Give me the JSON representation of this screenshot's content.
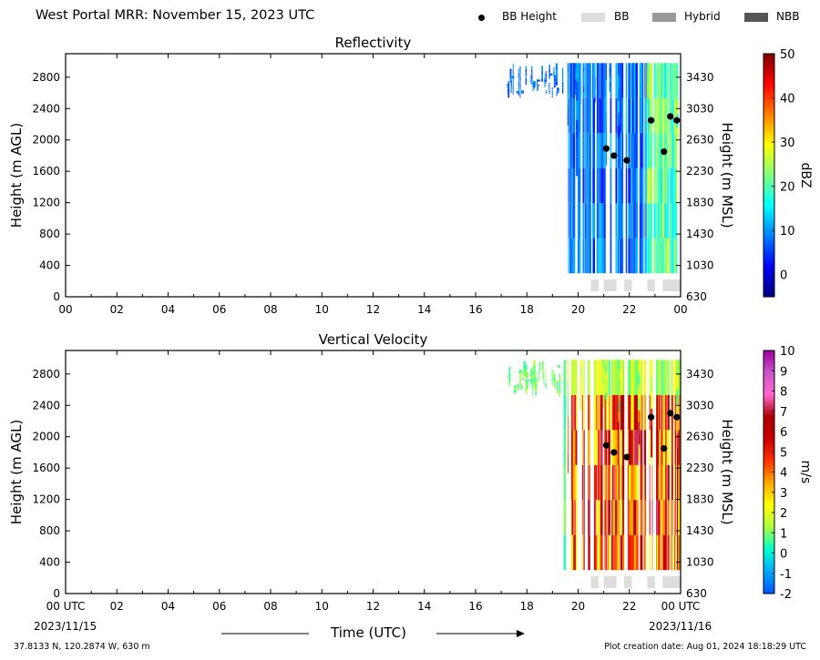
{
  "header": {
    "title": "West Portal MRR:  November 15, 2023 UTC"
  },
  "legend": {
    "placement": "top-right",
    "items": [
      {
        "label": "BB Height",
        "marker": "dot",
        "color": "#000000"
      },
      {
        "label": "BB",
        "marker": "box",
        "color": "#dddddd"
      },
      {
        "label": "Hybrid",
        "marker": "box",
        "color": "#999999"
      },
      {
        "label": "NBB",
        "marker": "box",
        "color": "#555555"
      }
    ]
  },
  "footer": {
    "location": "37.8133 N, 120.2874 W, 630 m",
    "creation": "Plot creation date: Aug 01, 2024 18:18:29 UTC",
    "xlabel": "Time (UTC)",
    "start_date": "2023/11/15",
    "end_date": "2023/11/16"
  },
  "chart_data": [
    {
      "type": "heatmap",
      "title": "Reflectivity",
      "ylabel": "Height (m AGL)",
      "y2label": "Height (m MSL)",
      "xlim": [
        0,
        24
      ],
      "ylim": [
        0,
        3100
      ],
      "xticks": [
        "00",
        "02",
        "04",
        "06",
        "08",
        "10",
        "12",
        "14",
        "16",
        "18",
        "20",
        "22",
        "00"
      ],
      "yticks": [
        0,
        400,
        800,
        1200,
        1600,
        2000,
        2400,
        2800
      ],
      "y2ticks": [
        "630",
        "1030",
        "1430",
        "1830",
        "2230",
        "2630",
        "3030",
        "3430"
      ],
      "colorbar": {
        "label": "dBZ",
        "range": [
          -5,
          50
        ],
        "ticks": [
          0,
          10,
          20,
          30,
          40,
          50
        ],
        "colors": [
          "#00007f",
          "#0000ff",
          "#007fff",
          "#00ffff",
          "#7fff7f",
          "#ffff00",
          "#ff7f00",
          "#ff0000",
          "#7f0000"
        ]
      },
      "bright_band_heights": [
        {
          "time": 21.1,
          "height": 1890
        },
        {
          "time": 21.4,
          "height": 1800
        },
        {
          "time": 21.9,
          "height": 1740
        },
        {
          "time": 22.85,
          "height": 2250
        },
        {
          "time": 23.35,
          "height": 1850
        },
        {
          "time": 23.6,
          "height": 2300
        },
        {
          "time": 23.85,
          "height": 2250
        }
      ],
      "bb_flags": [
        {
          "start": 20.5,
          "end": 20.8,
          "class": "BB"
        },
        {
          "start": 21.0,
          "end": 21.5,
          "class": "BB"
        },
        {
          "start": 21.8,
          "end": 22.1,
          "class": "BB"
        },
        {
          "start": 22.7,
          "end": 23.0,
          "class": "BB"
        },
        {
          "start": 23.3,
          "end": 24.0,
          "class": "BB"
        }
      ]
    },
    {
      "type": "heatmap",
      "title": "Vertical Velocity",
      "ylabel": "Height (m AGL)",
      "y2label": "Height (m MSL)",
      "xlim": [
        0,
        24
      ],
      "ylim": [
        0,
        3100
      ],
      "xticks": [
        "00 UTC",
        "02",
        "04",
        "06",
        "08",
        "10",
        "12",
        "14",
        "16",
        "18",
        "20",
        "22",
        "00 UTC"
      ],
      "yticks": [
        0,
        400,
        800,
        1200,
        1600,
        2000,
        2400,
        2800
      ],
      "y2ticks": [
        "630",
        "1030",
        "1430",
        "1830",
        "2230",
        "2630",
        "3030",
        "3430"
      ],
      "colorbar": {
        "label": "m/s",
        "range": [
          -2,
          10
        ],
        "ticks": [
          -2,
          -1,
          0,
          1,
          2,
          3,
          4,
          5,
          6,
          7,
          8,
          9,
          10
        ],
        "colors": [
          "#0055ff",
          "#00aaff",
          "#00ffcc",
          "#aaff44",
          "#ffff00",
          "#ffaa00",
          "#ff3300",
          "#cc0000",
          "#aa0000",
          "#ff66cc",
          "#cc55cc",
          "#990099"
        ]
      },
      "bright_band_heights": [
        {
          "time": 21.1,
          "height": 1890
        },
        {
          "time": 21.4,
          "height": 1800
        },
        {
          "time": 21.9,
          "height": 1740
        },
        {
          "time": 22.85,
          "height": 2250
        },
        {
          "time": 23.35,
          "height": 1850
        },
        {
          "time": 23.6,
          "height": 2300
        },
        {
          "time": 23.85,
          "height": 2250
        }
      ],
      "bb_flags": [
        {
          "start": 20.5,
          "end": 20.8,
          "class": "BB"
        },
        {
          "start": 21.0,
          "end": 21.5,
          "class": "BB"
        },
        {
          "start": 21.8,
          "end": 22.1,
          "class": "BB"
        },
        {
          "start": 22.7,
          "end": 23.0,
          "class": "BB"
        },
        {
          "start": 23.3,
          "end": 24.0,
          "class": "BB"
        }
      ]
    }
  ]
}
